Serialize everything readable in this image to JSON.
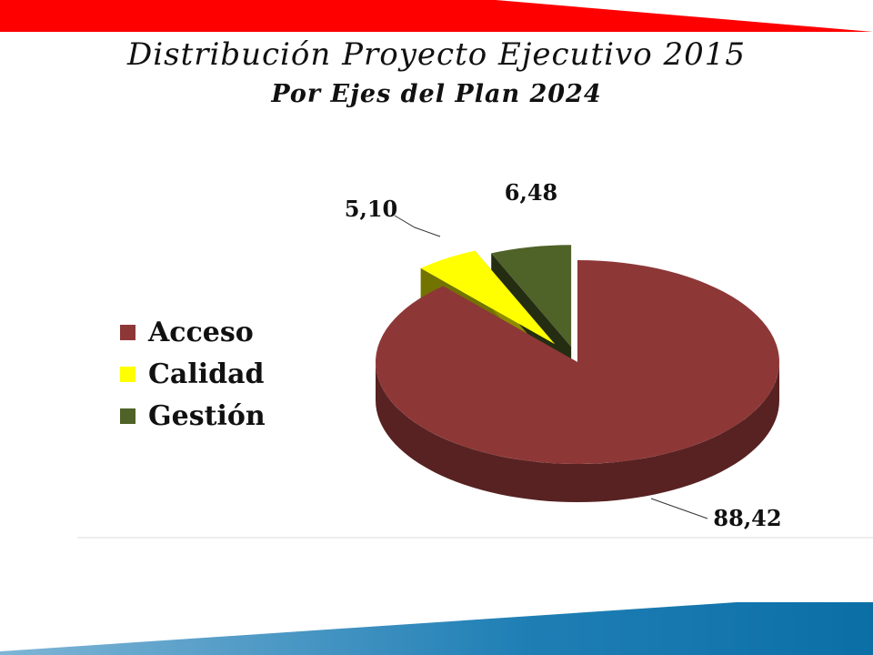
{
  "title": "Distribución Proyecto Ejecutivo 2015",
  "subtitle": "Por Ejes del Plan 2024",
  "chart_data": {
    "type": "pie",
    "title": "Distribución Proyecto Ejecutivo 2015",
    "subtitle": "Por Ejes del Plan 2024",
    "categories": [
      "Acceso",
      "Calidad",
      "Gestión"
    ],
    "values": [
      88.42,
      5.1,
      6.48
    ],
    "data_labels": [
      "88,42",
      "5,10",
      "6,48"
    ],
    "colors": [
      "#8E3737",
      "#FFFF00",
      "#4F6228"
    ],
    "legend_position": "left",
    "style": "3d-exploded"
  },
  "legend": [
    {
      "label": "Acceso",
      "color": "#8E3737"
    },
    {
      "label": "Calidad",
      "color": "#FFFF00"
    },
    {
      "label": "Gestión",
      "color": "#4F6228"
    }
  ]
}
